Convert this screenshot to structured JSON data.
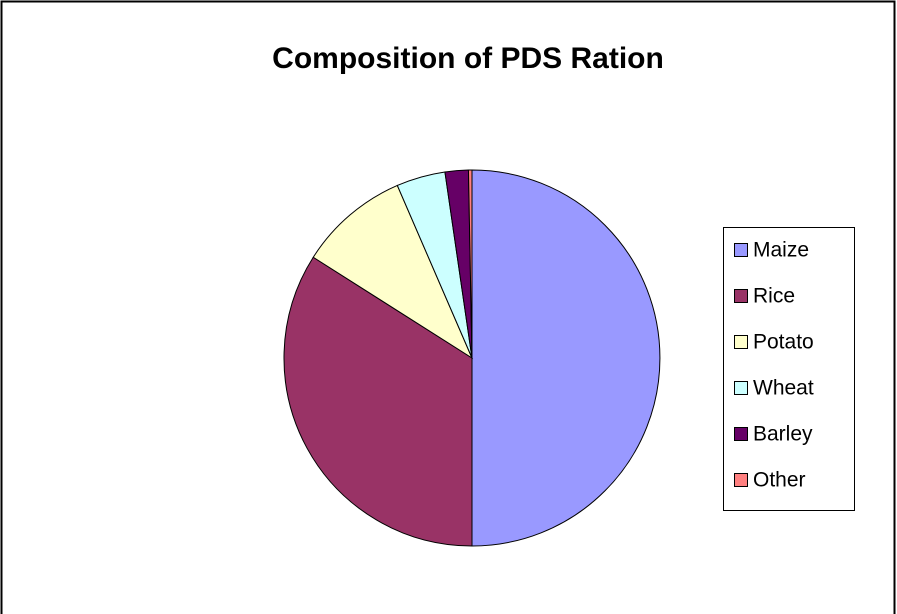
{
  "chart_data": {
    "type": "pie",
    "title": "Composition of PDS Ration",
    "categories": [
      "Maize",
      "Rice",
      "Potato",
      "Wheat",
      "Barley",
      "Other"
    ],
    "values": [
      50,
      34,
      9.5,
      4.2,
      2,
      0.3
    ],
    "colors": [
      "#9999ff",
      "#993366",
      "#ffffcc",
      "#ccffff",
      "#660066",
      "#ff8080"
    ],
    "legend": "right"
  }
}
